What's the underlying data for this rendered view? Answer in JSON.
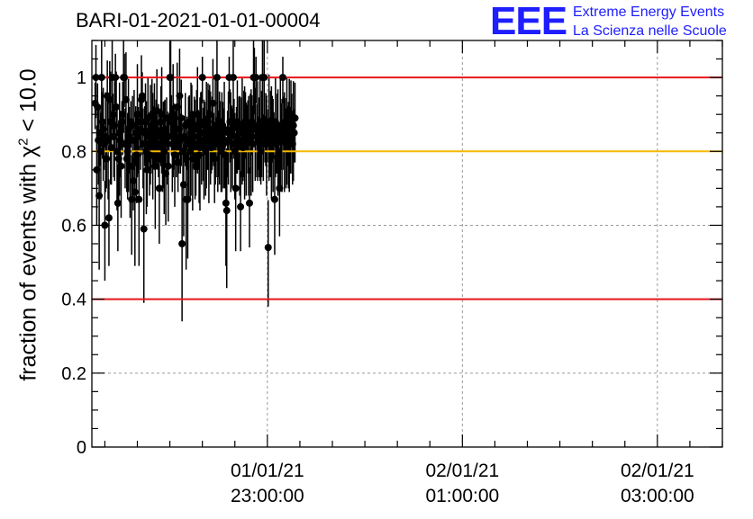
{
  "title": "BARI-01-2021-01-01-00004",
  "logo": {
    "mark": "EEE",
    "line1": "Extreme Energy Events",
    "line2": "La Scienza nelle Scuole"
  },
  "colors": {
    "red_line": "#e8161a",
    "orange_line": "#f5b800",
    "logo_blue": "#1e1eff",
    "points": "#000000"
  },
  "chart_data": {
    "type": "scatter",
    "title": "BARI-01-2021-01-01-00004",
    "xlabel": "",
    "ylabel_text": "fraction of events with ",
    "ylabel_chi": "χ",
    "ylabel_sup": "2",
    "ylabel_tail": " < 10.0",
    "ylim": [
      0,
      1.1
    ],
    "xlim": [
      "2021-01-01 21:12",
      "2021-01-02 03:40"
    ],
    "x_ticks": [
      {
        "x": "2021-01-01 23:00",
        "line1": "01/01/21",
        "line2": "23:00:00"
      },
      {
        "x": "2021-01-02 01:00",
        "line1": "02/01/21",
        "line2": "01:00:00"
      },
      {
        "x": "2021-01-02 03:00",
        "line1": "02/01/21",
        "line2": "03:00:00"
      }
    ],
    "y_ticks": [
      {
        "v": 0,
        "label": "0"
      },
      {
        "v": 0.2,
        "label": "0.2"
      },
      {
        "v": 0.4,
        "label": "0.4"
      },
      {
        "v": 0.6,
        "label": "0.6"
      },
      {
        "v": 0.8,
        "label": "0.8"
      },
      {
        "v": 1,
        "label": "1"
      }
    ],
    "grid": true,
    "reference_lines": [
      {
        "y": 1.0,
        "color": "red"
      },
      {
        "y": 0.8,
        "color": "orange"
      },
      {
        "y": 0.4,
        "color": "red"
      }
    ],
    "series": [
      {
        "start": "2021-01-01 21:14",
        "step_minutes": 0.5,
        "values": [
          0.93,
          1,
          0.75,
          0.92,
          0.83,
          0.68,
          0.85,
          0.8,
          1,
          0.88,
          0.86,
          0.82,
          0.6,
          0.84,
          0.78,
          0.95,
          0.83,
          0.62,
          0.94,
          0.88,
          0.81,
          1,
          0.9,
          0.84,
          0.87,
          1,
          0.92,
          0.8,
          0.66,
          0.78,
          0.85,
          0.83,
          0.76,
          0.88,
          0.9,
          1,
          1,
          0.82,
          0.94,
          0.78,
          0.8,
          0.86,
          0.84,
          0.76,
          0.88,
          0.67,
          0.83,
          0.72,
          0.87,
          0.69,
          0.85,
          0.79,
          0.9,
          0.84,
          0.67,
          0.88,
          0.86,
          0.94,
          0.95,
          0.82,
          0.59,
          0.85,
          0.88,
          0.8,
          0.75,
          0.89,
          0.84,
          0.79,
          0.86,
          0.82,
          0.9,
          0.83,
          0.85,
          0.88,
          0.76,
          0.86,
          0.91,
          0.82,
          0.84,
          0.7,
          0.85,
          0.88,
          0.9,
          0.78,
          0.83,
          0.8,
          0.86,
          0.74,
          0.89,
          0.82,
          0.76,
          0.84,
          1,
          1,
          0.88,
          0.82,
          0.9,
          0.85,
          0.79,
          0.86,
          0.84,
          0.92,
          0.77,
          0.86,
          0.95,
          0.83,
          0.89,
          0.55,
          0.8,
          0.71,
          0.84,
          0.87,
          0.67,
          0.83,
          0.67,
          0.82,
          0.88,
          0.8,
          0.85,
          0.9,
          0.78,
          0.84,
          0.86,
          0.82,
          0.76,
          0.87,
          0.9,
          0.84,
          0.79,
          0.81,
          0.88,
          0.85,
          1,
          0.83,
          0.82,
          0.87,
          0.8,
          0.86,
          0.84,
          0.88,
          0.83,
          0.9,
          0.85,
          0.81,
          0.86,
          0.93,
          0.84,
          0.78,
          0.87,
          0.82,
          1,
          0.86,
          0.83,
          0.85,
          0.88,
          0.8,
          0.84,
          0.87,
          0.82,
          0.86,
          0.79,
          0.66,
          0.64,
          0.83,
          0.85,
          1,
          0.88,
          0.84,
          0.86,
          0.82,
          1,
          0.87,
          0.8,
          0.7,
          0.84,
          0.88,
          0.82,
          0.86,
          0.83,
          0.65,
          0.85,
          0.87,
          0.81,
          0.86,
          0.84,
          0.88,
          0.82,
          0.87,
          0.85,
          0.83,
          0.66,
          0.86,
          0.84,
          0.88,
          0.82,
          1,
          1,
          0.86,
          1,
          0.84,
          0.87,
          0.83,
          0.85,
          0.88,
          0.8,
          0.86,
          1,
          0.82,
          1,
          0.84,
          0.87,
          0.83,
          0.85,
          0.54,
          0.88,
          0.82,
          0.86,
          0.84,
          0.87,
          0.83,
          0.85,
          0.67,
          0.88,
          0.82,
          0.86,
          0.84,
          0.8,
          0.7,
          0.87,
          0.85,
          0.83,
          1,
          0.86,
          0.84,
          0.88,
          0.82,
          0.87,
          0.85,
          0.83,
          0.86,
          0.84,
          0.88,
          0.9,
          0.82,
          0.87,
          0.85,
          0.89
        ]
      }
    ]
  }
}
